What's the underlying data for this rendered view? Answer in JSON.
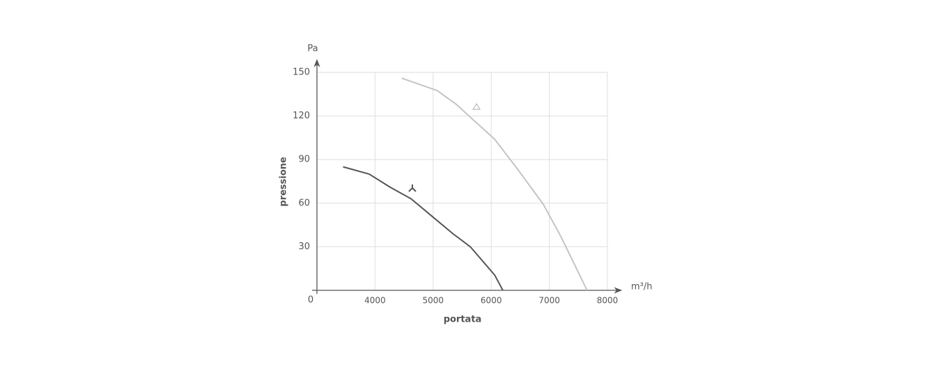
{
  "chart_data": {
    "type": "line",
    "x_unit": "m³/h",
    "y_unit": "Pa",
    "xlabel": "portata",
    "ylabel": "pressione",
    "xlim": [
      3000,
      8000
    ],
    "xticks": [
      4000,
      5000,
      6000,
      7000,
      8000
    ],
    "ylim": [
      0,
      150
    ],
    "yticks": [
      0,
      30,
      60,
      90,
      120,
      150
    ],
    "grid": true,
    "series": [
      {
        "color": "#555555",
        "x": [
          3450,
          3900,
          4260,
          4620,
          4980,
          5340,
          5640,
          6060,
          6200
        ],
        "values": [
          85,
          80,
          71,
          63,
          51,
          39,
          30,
          10.5,
          0
        ]
      },
      {
        "color": "#c4c4c4",
        "x": [
          4460,
          5070,
          5400,
          5700,
          6060,
          6480,
          6900,
          7200,
          7650
        ],
        "values": [
          146,
          137.5,
          128,
          117,
          104,
          82,
          59,
          37,
          0
        ]
      }
    ]
  }
}
